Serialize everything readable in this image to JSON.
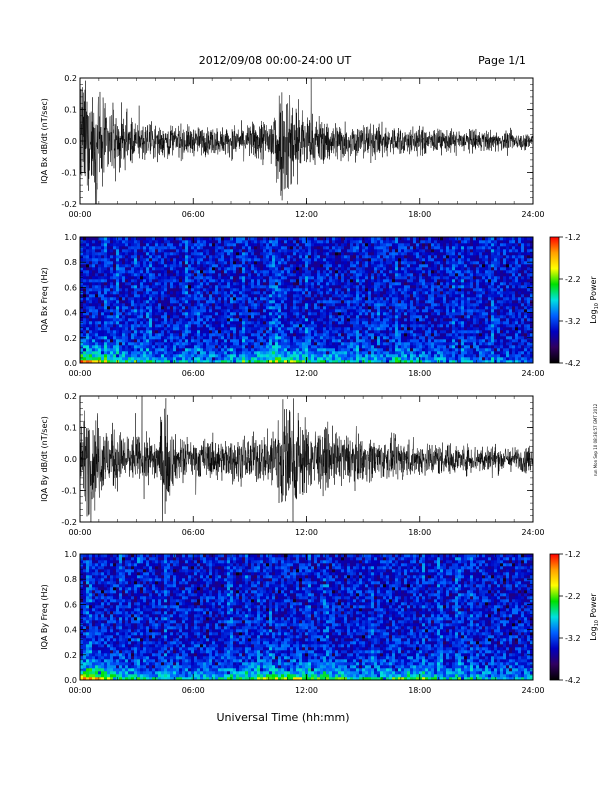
{
  "header": {
    "title": "2012/09/08   00:00-24:00 UT",
    "page": "Page 1/1"
  },
  "footer": {
    "xlabel": "Universal Time (hh:mm)",
    "side_stamp": "run Mon Sep 10 08:36:57 GMT 2012"
  },
  "colorbar": {
    "label_main": "Log",
    "label_sub": "10",
    "label_tail": " Power",
    "ticks": [
      "-1.2",
      "-2.2",
      "-3.2",
      "-4.2"
    ],
    "stops": [
      "#ff0000",
      "#ffa000",
      "#ffff00",
      "#00e000",
      "#00e0e0",
      "#0060ff",
      "#0000c0",
      "#300060",
      "#000000"
    ]
  },
  "chart_data": [
    {
      "type": "line",
      "ylabel": "IQA Bx dB/dt (nT/sec)",
      "xlim": [
        0,
        24
      ],
      "ylim": [
        -0.2,
        0.2
      ],
      "x_ticks": [
        "00:00",
        "06:00",
        "12:00",
        "18:00",
        "24:00"
      ],
      "y_ticks": [
        "-0.2",
        "-0.1",
        "0.0",
        "0.1",
        "0.2"
      ],
      "envelope": {
        "t_hours": [
          0,
          0.5,
          1,
          1.5,
          2,
          2.5,
          3,
          4,
          5,
          6,
          7,
          8,
          9,
          10,
          10.5,
          11,
          11.5,
          12,
          13,
          14,
          15,
          16,
          17,
          18,
          19,
          20,
          21,
          22,
          23,
          24
        ],
        "amplitude": [
          0.2,
          0.2,
          0.17,
          0.12,
          0.1,
          0.09,
          0.07,
          0.06,
          0.06,
          0.05,
          0.05,
          0.05,
          0.06,
          0.09,
          0.2,
          0.2,
          0.16,
          0.1,
          0.08,
          0.07,
          0.06,
          0.06,
          0.05,
          0.05,
          0.04,
          0.04,
          0.04,
          0.035,
          0.03,
          0.03
        ]
      }
    },
    {
      "type": "heatmap",
      "ylabel": "IQA Bx Freq (Hz)",
      "xlim": [
        0,
        24
      ],
      "ylim": [
        0,
        1
      ],
      "x_ticks": [
        "00:00",
        "06:00",
        "12:00",
        "18:00",
        "24:00"
      ],
      "y_ticks": [
        "0.0",
        "0.2",
        "0.4",
        "0.6",
        "0.8",
        "1.0"
      ],
      "zlim": [
        -4.2,
        -1.2
      ],
      "low_freq_activity": {
        "t_hours": [
          0,
          1,
          2,
          4,
          6,
          8,
          9,
          10,
          11,
          12,
          14,
          16,
          17,
          18,
          20,
          22,
          24
        ],
        "level": [
          1.0,
          0.8,
          0.5,
          0.35,
          0.3,
          0.35,
          0.5,
          0.55,
          0.65,
          0.5,
          0.4,
          0.35,
          0.45,
          0.35,
          0.25,
          0.2,
          0.15
        ]
      }
    },
    {
      "type": "line",
      "ylabel": "IQA By dB/dt (nT/sec)",
      "xlim": [
        0,
        24
      ],
      "ylim": [
        -0.2,
        0.2
      ],
      "x_ticks": [
        "00:00",
        "06:00",
        "12:00",
        "18:00",
        "24:00"
      ],
      "y_ticks": [
        "-0.2",
        "-0.1",
        "0.0",
        "0.1",
        "0.2"
      ],
      "envelope": {
        "t_hours": [
          0,
          0.5,
          1,
          1.5,
          2,
          2.5,
          3,
          4,
          4.5,
          5,
          6,
          7,
          8,
          9,
          10,
          10.5,
          11,
          11.5,
          12,
          13,
          14,
          15,
          16,
          17,
          18,
          19,
          20,
          21,
          22,
          23,
          24
        ],
        "amplitude": [
          0.12,
          0.2,
          0.15,
          0.12,
          0.1,
          0.09,
          0.08,
          0.08,
          0.2,
          0.08,
          0.07,
          0.07,
          0.07,
          0.08,
          0.09,
          0.2,
          0.2,
          0.18,
          0.12,
          0.1,
          0.09,
          0.08,
          0.07,
          0.07,
          0.06,
          0.06,
          0.05,
          0.05,
          0.05,
          0.04,
          0.05
        ]
      }
    },
    {
      "type": "heatmap",
      "ylabel": "IQA By Freq (Hz)",
      "xlim": [
        0,
        24
      ],
      "ylim": [
        0,
        1
      ],
      "x_ticks": [
        "00:00",
        "06:00",
        "12:00",
        "18:00",
        "24:00"
      ],
      "y_ticks": [
        "0.0",
        "0.2",
        "0.4",
        "0.6",
        "0.8",
        "1.0"
      ],
      "zlim": [
        -4.2,
        -1.2
      ],
      "low_freq_activity": {
        "t_hours": [
          0,
          1,
          2,
          4,
          6,
          8,
          9,
          10,
          11,
          12,
          14,
          16,
          17,
          18,
          19,
          20,
          22,
          24
        ],
        "level": [
          1.0,
          0.85,
          0.55,
          0.4,
          0.35,
          0.4,
          0.55,
          0.65,
          0.75,
          0.6,
          0.5,
          0.45,
          0.55,
          0.6,
          0.45,
          0.4,
          0.35,
          0.3
        ]
      }
    }
  ]
}
